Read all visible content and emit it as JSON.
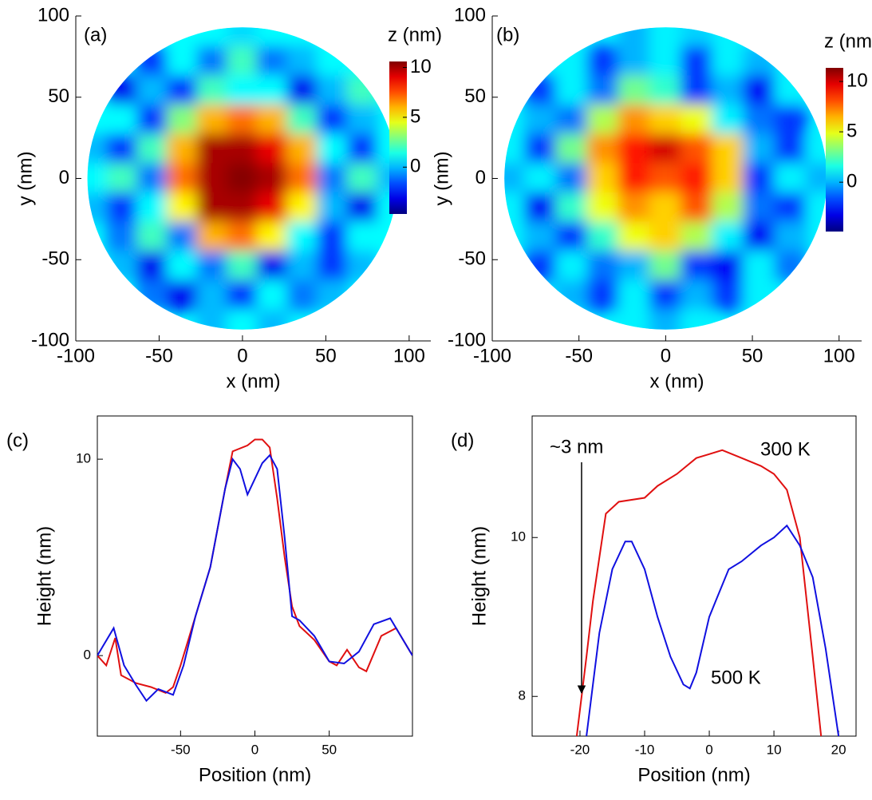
{
  "chart_data": [
    {
      "type": "heatmap",
      "annotation": "(a)",
      "x_label": "x (nm)",
      "y_label": "y (nm)",
      "colorbar_label": "z (nm)",
      "colormap": "jet",
      "xlim": [
        -100,
        113
      ],
      "ylim": [
        -100,
        100
      ],
      "xticks": [
        -100,
        -50,
        0,
        50,
        100
      ],
      "yticks": [
        -100,
        -50,
        0,
        50,
        100
      ],
      "clim": [
        -4.7,
        10.6
      ],
      "cticks": [
        0,
        5,
        10
      ],
      "x": [
        -90,
        -72,
        -54,
        -36,
        -18,
        0,
        18,
        36,
        54,
        72,
        90
      ],
      "y": [
        90,
        72,
        54,
        36,
        18,
        0,
        -18,
        -36,
        -54,
        -72,
        -90
      ],
      "z": [
        [
          null,
          null,
          null,
          null,
          1,
          0.5,
          1,
          null,
          null,
          null,
          null
        ],
        [
          null,
          null,
          -2,
          1,
          -1,
          2,
          -1,
          0,
          1,
          null,
          null
        ],
        [
          null,
          -3,
          0,
          -2,
          2,
          1,
          1,
          -3,
          0,
          2,
          null
        ],
        [
          null,
          1,
          -2,
          3,
          6,
          7,
          6,
          2,
          -2,
          0,
          null
        ],
        [
          0,
          -2,
          2,
          6,
          10,
          10,
          9,
          6,
          1,
          -2,
          1
        ],
        [
          1,
          2,
          -1,
          7,
          10,
          10.5,
          10,
          7,
          -1,
          2,
          0
        ],
        [
          0,
          -2,
          1,
          5,
          10,
          10,
          9,
          5,
          0,
          -3,
          1
        ],
        [
          null,
          -1,
          2,
          -1,
          6,
          7,
          5,
          1,
          -2,
          1,
          null
        ],
        [
          null,
          0,
          -3,
          1,
          -1,
          2,
          -3,
          0,
          -2,
          0,
          null
        ],
        [
          null,
          null,
          -1,
          -3,
          0,
          -2,
          1,
          -1,
          0,
          null,
          null
        ],
        [
          null,
          null,
          null,
          null,
          0,
          1,
          0,
          null,
          null,
          null,
          null
        ]
      ]
    },
    {
      "type": "heatmap",
      "annotation": "(b)",
      "x_label": "x (nm)",
      "y_label": "y (nm)",
      "colorbar_label": "z (nm)",
      "colormap": "jet",
      "xlim": [
        -100,
        113
      ],
      "ylim": [
        -100,
        100
      ],
      "xticks": [
        -100,
        -50,
        0,
        50,
        100
      ],
      "yticks": [
        -100,
        -50,
        0,
        50,
        100
      ],
      "clim": [
        -4.9,
        11.35
      ],
      "cticks": [
        0,
        5,
        10
      ],
      "x": [
        -90,
        -72,
        -54,
        -36,
        -18,
        0,
        18,
        36,
        54,
        72,
        90
      ],
      "y": [
        90,
        72,
        54,
        36,
        18,
        0,
        -18,
        -36,
        -54,
        -72,
        -90
      ],
      "z": [
        [
          null,
          null,
          null,
          null,
          0,
          1,
          0.5,
          null,
          null,
          null,
          null
        ],
        [
          null,
          null,
          1,
          -2,
          0,
          1,
          -2,
          1,
          0,
          null,
          null
        ],
        [
          null,
          -2,
          1,
          -1,
          3,
          2,
          -2,
          0,
          -3,
          1,
          null
        ],
        [
          null,
          0,
          -1,
          4,
          7,
          6,
          5,
          1,
          -1,
          -2,
          null
        ],
        [
          1,
          -2,
          3,
          7,
          9,
          10,
          8,
          6,
          0,
          -2,
          1
        ],
        [
          0,
          1,
          -1,
          6,
          9,
          8,
          9,
          6,
          -2,
          1,
          0
        ],
        [
          1,
          -3,
          2,
          5,
          7,
          6,
          8,
          4,
          -1,
          -2,
          1
        ],
        [
          null,
          0,
          -2,
          2,
          5,
          6,
          4,
          1,
          -3,
          0,
          null
        ],
        [
          null,
          -2,
          1,
          -1,
          0,
          3,
          -2,
          -3,
          1,
          -1,
          null
        ],
        [
          null,
          null,
          0,
          -2,
          1,
          -2,
          0,
          -2,
          1,
          null,
          null
        ],
        [
          null,
          null,
          null,
          null,
          1,
          0,
          1,
          null,
          null,
          null,
          null
        ]
      ]
    },
    {
      "type": "line",
      "annotation": "(c)",
      "x_label": "Position (nm)",
      "y_label": "Height (nm)",
      "xlim": [
        -106,
        106
      ],
      "ylim": [
        -4.1,
        12.2
      ],
      "xticks": [
        -50,
        0,
        50
      ],
      "yticks": [
        0,
        10
      ],
      "series": [
        {
          "color": "#e01010",
          "x": [
            -106,
            -100,
            -94,
            -90,
            -80,
            -70,
            -60,
            -55,
            -50,
            -40,
            -30,
            -25,
            -20,
            -15,
            -5,
            0,
            5,
            10,
            15,
            20,
            25,
            30,
            40,
            50,
            55,
            62,
            70,
            75,
            85,
            95,
            106
          ],
          "values": [
            0,
            -0.5,
            0.9,
            -1,
            -1.4,
            -1.6,
            -1.9,
            -1.6,
            -0.5,
            2,
            4.5,
            6.5,
            8.5,
            10.4,
            10.7,
            11,
            11,
            10.6,
            8,
            5,
            2.5,
            1.5,
            0.8,
            -0.3,
            -0.5,
            0.3,
            -0.6,
            -0.8,
            1,
            1.4,
            0
          ]
        },
        {
          "color": "#1010e0",
          "x": [
            -106,
            -95,
            -88,
            -80,
            -73,
            -65,
            -55,
            -48,
            -40,
            -30,
            -25,
            -20,
            -15,
            -10,
            -5,
            0,
            5,
            10,
            15,
            20,
            25,
            30,
            40,
            50,
            60,
            70,
            80,
            91,
            106
          ],
          "values": [
            0,
            1.4,
            -0.5,
            -1.5,
            -2.3,
            -1.7,
            -2,
            -0.5,
            2,
            4.5,
            6.5,
            8.5,
            10,
            9.5,
            8.2,
            9,
            9.8,
            10.2,
            9.5,
            6,
            2,
            1.8,
            1,
            -0.3,
            -0.4,
            0.2,
            1.6,
            1.9,
            0
          ]
        }
      ]
    },
    {
      "type": "line",
      "annotation": "(d)",
      "x_label": "Position (nm)",
      "y_label": "Height (nm)",
      "xlim": [
        -27.4,
        22.7
      ],
      "ylim": [
        7.5,
        11.53
      ],
      "xticks": [
        -20,
        -10,
        0,
        10,
        20
      ],
      "yticks": [
        8,
        10
      ],
      "notes": [
        "~3 nm",
        "300 K",
        "500 K"
      ],
      "series": [
        {
          "name": "300 K",
          "color": "#e01010",
          "x": [
            -20.5,
            -19,
            -18,
            -16,
            -14,
            -10,
            -8,
            -5,
            -2,
            0,
            2,
            5,
            8,
            10,
            12,
            14,
            16,
            17.3
          ],
          "values": [
            7.5,
            8.5,
            9.2,
            10.3,
            10.45,
            10.5,
            10.65,
            10.8,
            11,
            11.05,
            11.1,
            11,
            10.9,
            10.8,
            10.6,
            10,
            8.5,
            7.5
          ]
        },
        {
          "name": "500 K",
          "color": "#1010e0",
          "x": [
            -19,
            -17,
            -15,
            -13,
            -12,
            -10,
            -8,
            -6,
            -4,
            -3,
            -2,
            0,
            1,
            3,
            5,
            8,
            10,
            12,
            14,
            16,
            18,
            20
          ],
          "values": [
            7.5,
            8.8,
            9.6,
            9.95,
            9.95,
            9.6,
            9,
            8.5,
            8.15,
            8.1,
            8.3,
            9,
            9.2,
            9.6,
            9.7,
            9.9,
            10,
            10.15,
            9.9,
            9.5,
            8.6,
            7.5
          ]
        }
      ]
    }
  ]
}
